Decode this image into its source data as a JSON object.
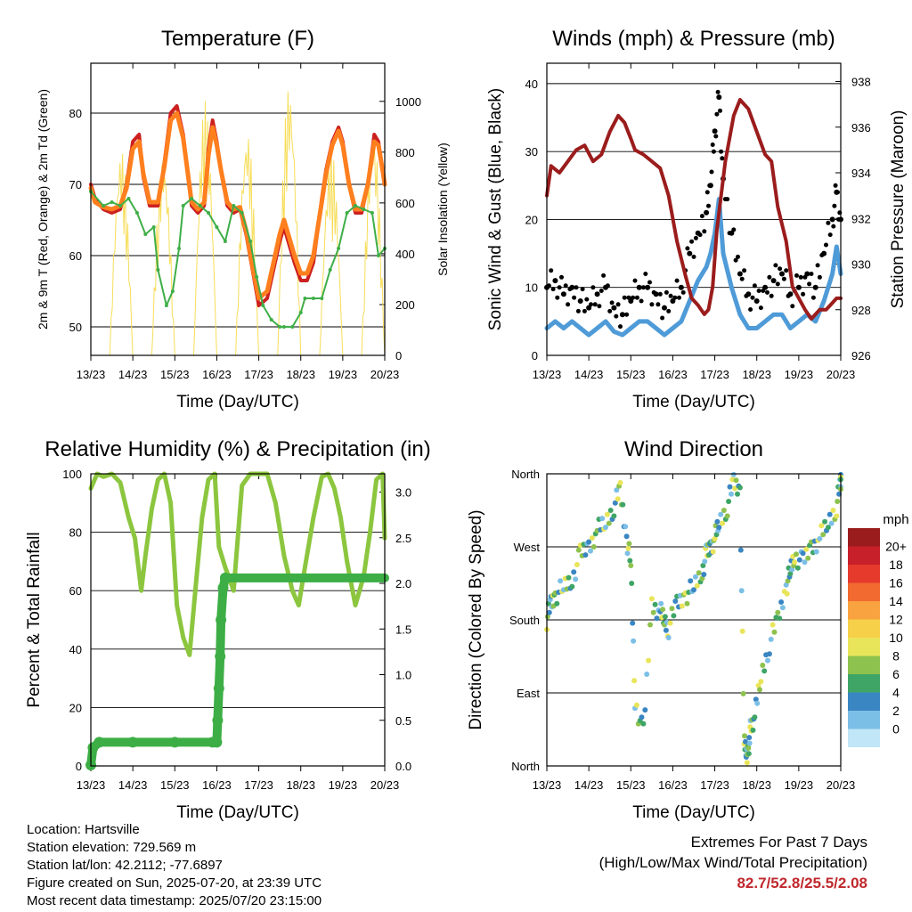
{
  "chart_data": [
    {
      "type": "line",
      "title": "Temperature (F)",
      "xlabel": "Time (Day/UTC)",
      "ylabel": "2m & 9m T (Red, Orange) & 2m Td (Green)",
      "ylabel_right": "Solar Insolation (Yellow)",
      "x_ticks": [
        "13/23",
        "14/23",
        "15/23",
        "16/23",
        "17/23",
        "18/23",
        "19/23",
        "20/23"
      ],
      "ylim": [
        46,
        87
      ],
      "y_ticks": [
        50,
        60,
        70,
        80
      ],
      "y2lim": [
        0,
        1150
      ],
      "y2_ticks": [
        0,
        200,
        400,
        600,
        800,
        1000
      ],
      "grid": true,
      "series": [
        {
          "name": "2m T",
          "color": "#cc2020",
          "x": [
            0,
            0.1,
            0.3,
            0.5,
            0.7,
            0.85,
            1,
            1.15,
            1.25,
            1.4,
            1.6,
            1.75,
            1.9,
            2.05,
            2.2,
            2.4,
            2.55,
            2.7,
            2.8,
            2.9,
            3.0,
            3.1,
            3.25,
            3.4,
            3.55,
            3.7,
            3.85,
            4.0,
            4.2,
            4.35,
            4.5,
            4.6,
            4.7,
            4.85,
            5.0,
            5.15,
            5.3,
            5.5,
            5.6,
            5.75,
            5.9,
            6.0,
            6.15,
            6.3,
            6.45,
            6.6,
            6.75,
            6.85,
            6.95,
            7.0
          ],
          "values": [
            70,
            68,
            66.5,
            66,
            66.5,
            70,
            76,
            77,
            71,
            67,
            67,
            73,
            80,
            81,
            77,
            67,
            66,
            67,
            75,
            79,
            76,
            72,
            67,
            66,
            66.5,
            63,
            58,
            53,
            54,
            58,
            62,
            64,
            62,
            59,
            56.5,
            56.5,
            59,
            68,
            72,
            76,
            78,
            76,
            70,
            66,
            66,
            70,
            77,
            76,
            72,
            70
          ]
        },
        {
          "name": "9m T",
          "color": "#ff7f1e",
          "x": [
            0,
            0.1,
            0.3,
            0.5,
            0.7,
            0.85,
            1,
            1.15,
            1.25,
            1.4,
            1.6,
            1.75,
            1.9,
            2.05,
            2.2,
            2.4,
            2.55,
            2.7,
            2.8,
            2.9,
            3.0,
            3.1,
            3.25,
            3.4,
            3.55,
            3.7,
            3.85,
            4.0,
            4.2,
            4.35,
            4.5,
            4.6,
            4.7,
            4.85,
            5.0,
            5.15,
            5.3,
            5.5,
            5.6,
            5.75,
            5.9,
            6.0,
            6.15,
            6.3,
            6.45,
            6.6,
            6.75,
            6.85,
            6.95,
            7.0
          ],
          "values": [
            69.5,
            67.5,
            66.8,
            66.5,
            67,
            69.5,
            75,
            76,
            71.5,
            67.5,
            67.5,
            72.5,
            79,
            80,
            76.5,
            67.5,
            66.5,
            67.5,
            74,
            78,
            75.5,
            72,
            67.5,
            66.5,
            66.8,
            63.5,
            58.5,
            54,
            55,
            59,
            63,
            65,
            63,
            60,
            57.5,
            57.5,
            60,
            67.5,
            71.5,
            75.5,
            77.5,
            75.5,
            70,
            66.5,
            66.5,
            70,
            76,
            75.5,
            72,
            70
          ]
        },
        {
          "name": "2m Td",
          "color": "#3fae48",
          "x": [
            0,
            0.3,
            0.5,
            0.7,
            0.9,
            1.1,
            1.3,
            1.5,
            1.6,
            1.8,
            1.95,
            2.1,
            2.2,
            2.4,
            2.6,
            2.8,
            3.0,
            3.2,
            3.4,
            3.6,
            3.8,
            3.95,
            4.1,
            4.3,
            4.5,
            4.6,
            4.8,
            5.0,
            5.1,
            5.3,
            5.5,
            5.7,
            5.9,
            6.1,
            6.3,
            6.5,
            6.7,
            6.85,
            7.0
          ],
          "values": [
            69,
            67,
            67.5,
            67,
            68,
            66,
            63,
            64,
            58,
            53,
            55,
            61,
            67,
            68,
            67,
            66,
            64,
            62,
            67,
            66,
            62,
            57,
            53,
            51,
            50,
            50,
            50,
            52,
            54,
            54,
            54,
            58,
            61,
            66,
            67,
            66.5,
            66,
            60,
            61
          ]
        }
      ]
    },
    {
      "type": "scatter",
      "title": "Winds (mph) & Pressure (mb)",
      "xlabel": "Time (Day/UTC)",
      "ylabel": "Sonic Wind & Gust (Blue, Black)",
      "ylabel_right": "Station Pressure (Maroon)",
      "x_ticks": [
        "13/23",
        "14/23",
        "15/23",
        "16/23",
        "17/23",
        "18/23",
        "19/23",
        "20/23"
      ],
      "ylim": [
        0,
        43
      ],
      "y_ticks": [
        0,
        10,
        20,
        30,
        40
      ],
      "y2lim": [
        926,
        938.8
      ],
      "y2_ticks": [
        926,
        928,
        930,
        932,
        934,
        936,
        938
      ],
      "grid": true,
      "series": [
        {
          "name": "Pressure",
          "color": "#9b1c1c",
          "x": [
            0,
            0.1,
            0.3,
            0.5,
            0.7,
            0.9,
            1.1,
            1.3,
            1.5,
            1.7,
            1.85,
            2.0,
            2.1,
            2.3,
            2.5,
            2.7,
            2.9,
            3.1,
            3.3,
            3.45,
            3.6,
            3.75,
            3.85,
            3.95,
            4.05,
            4.25,
            4.45,
            4.6,
            4.8,
            5.0,
            5.2,
            5.35,
            5.5,
            5.7,
            5.85,
            6.0,
            6.15,
            6.3,
            6.5,
            6.65,
            6.8,
            6.9,
            7.0
          ],
          "values": [
            933,
            934.3,
            934,
            934.5,
            935,
            935.2,
            934.5,
            934.8,
            935.8,
            936.5,
            936.2,
            935.5,
            935,
            934.8,
            934.5,
            934.2,
            933,
            931,
            929.5,
            928.5,
            928.2,
            927.8,
            928,
            929,
            931.5,
            934.5,
            936.5,
            937.2,
            936.8,
            935.8,
            934.8,
            934.5,
            932.5,
            931,
            929,
            928.5,
            928,
            927.6,
            928,
            928,
            928.3,
            928.5,
            928.5
          ]
        },
        {
          "name": "Wind",
          "color": "#4f9bd8",
          "x": [
            0,
            0.2,
            0.4,
            0.6,
            0.8,
            1.0,
            1.2,
            1.4,
            1.6,
            1.8,
            2.0,
            2.2,
            2.4,
            2.6,
            2.8,
            3.0,
            3.2,
            3.4,
            3.6,
            3.8,
            3.9,
            4.0,
            4.1,
            4.2,
            4.4,
            4.6,
            4.8,
            5.0,
            5.2,
            5.4,
            5.6,
            5.8,
            6.0,
            6.2,
            6.4,
            6.6,
            6.8,
            6.9,
            7.0
          ],
          "values": [
            4,
            5,
            4,
            5,
            4,
            3,
            4,
            5,
            3.5,
            3,
            4,
            5,
            5,
            4,
            3,
            4,
            5,
            8,
            11,
            13,
            15,
            18,
            23,
            15,
            10,
            6,
            4,
            4,
            5,
            6,
            6,
            4,
            5,
            6,
            5,
            8,
            12,
            16,
            12
          ]
        },
        {
          "name": "Gust",
          "color": "#000000",
          "x": [
            0,
            0.2,
            0.4,
            0.6,
            0.8,
            1.0,
            1.2,
            1.4,
            1.6,
            1.8,
            2.0,
            2.2,
            2.4,
            2.6,
            2.8,
            3.0,
            3.2,
            3.4,
            3.6,
            3.8,
            3.9,
            4.0,
            4.1,
            4.2,
            4.4,
            4.6,
            4.8,
            5.0,
            5.2,
            5.4,
            5.6,
            5.8,
            6.0,
            6.2,
            6.4,
            6.6,
            6.8,
            6.9,
            7.0
          ],
          "values": [
            10,
            11,
            9,
            10,
            8,
            7,
            9,
            10,
            7,
            6,
            8,
            10,
            10,
            9,
            7,
            8,
            10,
            15,
            18,
            21,
            25,
            33,
            38,
            26,
            18,
            12,
            9,
            8,
            10,
            11,
            12,
            9,
            10,
            12,
            10,
            15,
            20,
            24,
            20
          ]
        }
      ]
    },
    {
      "type": "line",
      "title": "Relative Humidity (%) & Precipitation (in)",
      "xlabel": "Time (Day/UTC)",
      "ylabel": "Percent & Total Rainfall",
      "x_ticks": [
        "13/23",
        "14/23",
        "15/23",
        "16/23",
        "17/23",
        "18/23",
        "19/23",
        "20/23"
      ],
      "ylim": [
        0,
        100
      ],
      "y_ticks": [
        0,
        20,
        40,
        60,
        80,
        100
      ],
      "y2lim": [
        0,
        3.2
      ],
      "y2_ticks": [
        "0.0",
        "0.5",
        "1.0",
        "1.5",
        "2.0",
        "2.5",
        "3.0"
      ],
      "grid": true,
      "series": [
        {
          "name": "RH",
          "color": "#8cc63f",
          "x": [
            0,
            0.15,
            0.3,
            0.5,
            0.7,
            0.9,
            1.05,
            1.2,
            1.3,
            1.45,
            1.6,
            1.75,
            1.9,
            2.05,
            2.2,
            2.35,
            2.5,
            2.65,
            2.8,
            2.95,
            3.05,
            3.2,
            3.4,
            3.6,
            3.8,
            4.0,
            4.2,
            4.4,
            4.6,
            4.8,
            4.95,
            5.1,
            5.3,
            5.5,
            5.65,
            5.8,
            5.95,
            6.1,
            6.3,
            6.5,
            6.65,
            6.8,
            6.95,
            7.0
          ],
          "values": [
            95,
            100,
            99,
            100,
            97,
            85,
            78,
            60,
            72,
            88,
            98,
            100,
            90,
            55,
            44,
            38,
            62,
            85,
            98,
            100,
            75,
            68,
            60,
            96,
            100,
            100,
            100,
            90,
            72,
            60,
            55,
            68,
            85,
            99,
            100,
            95,
            85,
            70,
            55,
            65,
            80,
            98,
            100,
            78
          ]
        },
        {
          "name": "Precipitation",
          "color": "#3dae45",
          "x": [
            0,
            0.05,
            0.2,
            1.0,
            2.0,
            2.9,
            3.0,
            3.02,
            3.05,
            3.08,
            3.1,
            3.15,
            3.2,
            4.0,
            5.0,
            6.0,
            7.0
          ],
          "values": [
            0.01,
            0.2,
            0.26,
            0.26,
            0.26,
            0.26,
            0.26,
            0.5,
            0.85,
            1.2,
            1.6,
            1.95,
            2.06,
            2.06,
            2.06,
            2.06,
            2.06
          ]
        }
      ]
    },
    {
      "type": "scatter",
      "title": "Wind Direction",
      "xlabel": "Time (Day/UTC)",
      "ylabel": "Direction (Colored By Speed)",
      "x_ticks": [
        "13/23",
        "14/23",
        "15/23",
        "16/23",
        "17/23",
        "18/23",
        "19/23",
        "20/23"
      ],
      "ylim": [
        0,
        360
      ],
      "y_tick_labels": [
        "North",
        "East",
        "South",
        "West",
        "North"
      ],
      "legend_title": "mph",
      "legend_labels": [
        "20+",
        "18",
        "16",
        "14",
        "12",
        "10",
        "8",
        "6",
        "4",
        "2",
        "0"
      ],
      "legend_colors": [
        "#9b1c1c",
        "#c8202a",
        "#e53a2c",
        "#f26a30",
        "#f9a340",
        "#f7d04a",
        "#e9e55a",
        "#8ec24e",
        "#3fa566",
        "#3a86c2",
        "#7cbfe6",
        "#c1e6f7"
      ],
      "legend_placement": "right",
      "series": [
        {
          "name": "Direction",
          "x": [
            0,
            0.1,
            0.2,
            0.4,
            0.6,
            0.8,
            1.0,
            1.2,
            1.4,
            1.6,
            1.75,
            1.9,
            2.0,
            2.1,
            2.3,
            2.5,
            2.7,
            2.8,
            2.9,
            3.1,
            3.3,
            3.5,
            3.7,
            3.8,
            3.9,
            4.0,
            4.1,
            4.3,
            4.45,
            4.6,
            4.7,
            4.75,
            4.8,
            4.85,
            4.95,
            5.1,
            5.3,
            5.5,
            5.7,
            5.8,
            5.9,
            6.1,
            6.3,
            6.5,
            6.7,
            6.9,
            7.0
          ],
          "values": [
            180,
            200,
            210,
            220,
            230,
            260,
            270,
            290,
            300,
            320,
            340,
            280,
            250,
            80,
            40,
            200,
            190,
            180,
            170,
            200,
            210,
            220,
            240,
            260,
            270,
            280,
            300,
            320,
            350,
            340,
            30,
            20,
            10,
            50,
            60,
            110,
            150,
            180,
            220,
            240,
            260,
            250,
            270,
            280,
            300,
            320,
            350
          ]
        }
      ]
    }
  ],
  "footer": {
    "location": "Location: Hartsville",
    "elevation": "Station elevation: 729.569 m",
    "latlon": "Station lat/lon: 42.2112; -77.6897",
    "created": "Figure created on Sun, 2025-07-20, at 23:39 UTC",
    "recent": "Most recent data timestamp: 2025/07/20 23:15:00"
  },
  "extremes": {
    "heading": "Extremes For Past 7 Days",
    "subheading": "(High/Low/Max Wind/Total Precipitation)",
    "values": "82.7/52.8/25.5/2.08",
    "color": "#c0282d"
  }
}
